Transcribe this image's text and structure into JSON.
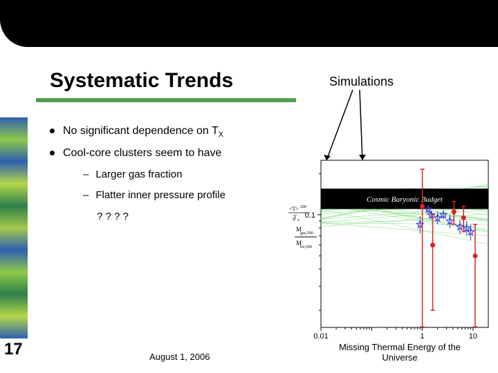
{
  "title": "Systematic Trends",
  "sim_label": "Simulations",
  "bullets": {
    "b1_prefix": "No significant dependence on T",
    "b1_sub": "X",
    "b2": "Cool-core clusters seem to have",
    "sub1": "Larger gas fraction",
    "sub2": "Flatter inner pressure profile",
    "sub3": "? ? ? ?"
  },
  "slide_number": "17",
  "footer_date": "August 1, 2006",
  "footer_right": "Missing Thermal Energy of the Universe",
  "chart": {
    "type": "scatter",
    "xscale": "log",
    "yscale": "log",
    "xlim": [
      0.01,
      20
    ],
    "ylim": [
      0.015,
      0.25
    ],
    "xticks": [
      0.01,
      0.1,
      1,
      10
    ],
    "xtick_labels": [
      "0.01",
      "",
      "1",
      "10"
    ],
    "yticks": [
      0.1
    ],
    "ytick_labels": [
      "0.1"
    ],
    "band_y": [
      0.11,
      0.155
    ],
    "band_color": "#000000",
    "sim_lines_color": "#6fd86f",
    "sim_lines_count": 40,
    "blue_points": [
      {
        "x": 0.9,
        "y": 0.085,
        "err": 0.025
      },
      {
        "x": 1.3,
        "y": 0.11,
        "err": 0.015
      },
      {
        "x": 1.5,
        "y": 0.1,
        "err": 0.015
      },
      {
        "x": 2.0,
        "y": 0.095,
        "err": 0.02
      },
      {
        "x": 2.6,
        "y": 0.1,
        "err": 0.015
      },
      {
        "x": 3.5,
        "y": 0.09,
        "err": 0.02
      },
      {
        "x": 5.5,
        "y": 0.082,
        "err": 0.02
      },
      {
        "x": 7.5,
        "y": 0.08,
        "err": 0.02
      },
      {
        "x": 9.0,
        "y": 0.075,
        "err": 0.02
      }
    ],
    "red_points": [
      {
        "x": 1.0,
        "y": 0.115,
        "err": 0.1
      },
      {
        "x": 1.6,
        "y": 0.06,
        "err": 0.04
      },
      {
        "x": 4.2,
        "y": 0.105,
        "err": 0.02
      },
      {
        "x": 6.5,
        "y": 0.095,
        "err": 0.02
      },
      {
        "x": 11.0,
        "y": 0.05,
        "err": 0.035
      }
    ],
    "blue_marker": "star-open",
    "blue_color": "#3333cc",
    "red_marker": "circle",
    "red_color": "#dd2222",
    "axis_color": "#000000",
    "title_text": "Cosmic Baryonic Budget",
    "ylabel_image": true,
    "background": "#ffffff"
  },
  "colors": {
    "underline": "#539f52",
    "topbar": "#000000"
  }
}
